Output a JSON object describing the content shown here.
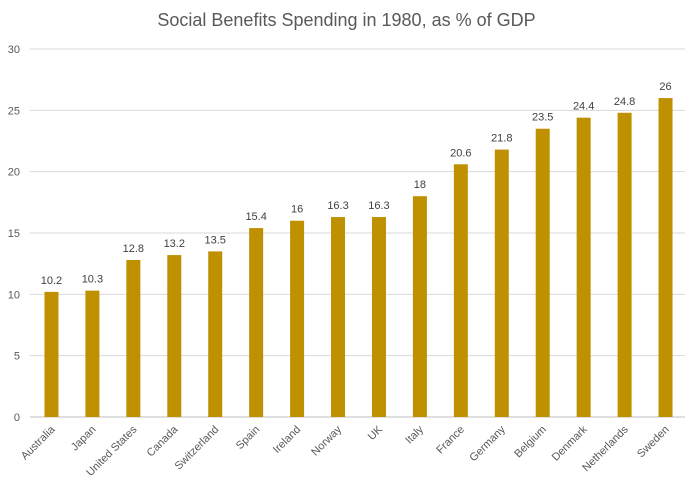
{
  "chart_data": {
    "type": "bar",
    "title": "Social Benefits Spending in 1980, as % of GDP",
    "xlabel": "",
    "ylabel": "",
    "ylim": [
      0,
      30
    ],
    "yticks": [
      0,
      5,
      10,
      15,
      20,
      25,
      30
    ],
    "grid": true,
    "legend": "none",
    "categories": [
      "Australia",
      "Japan",
      "United States",
      "Canada",
      "Switzerland",
      "Spain",
      "Ireland",
      "Norway",
      "UK",
      "Italy",
      "France",
      "Germany",
      "Belgium",
      "Denmark",
      "Netherlands",
      "Sweden"
    ],
    "values": [
      10.2,
      10.3,
      12.8,
      13.2,
      13.5,
      15.4,
      16,
      16.3,
      16.3,
      18,
      20.6,
      21.8,
      23.5,
      24.4,
      24.8,
      26
    ],
    "bar_color": "#BF9000"
  }
}
